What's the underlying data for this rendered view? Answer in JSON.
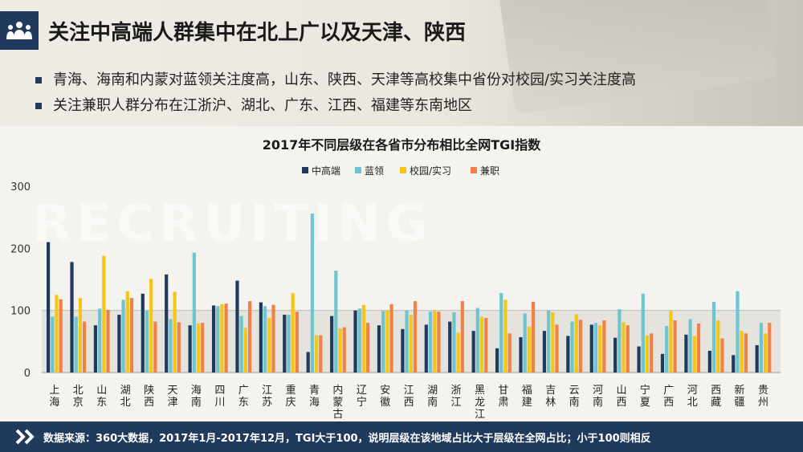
{
  "header": {
    "title": "关注中高端人群集中在北上广以及天津、陕西"
  },
  "bullets": [
    "青海、海南和内蒙对蓝领关注度高，山东、陕西、天津等高校集中省份对校园/实习关注度高",
    "关注兼职人群分布在江浙沪、湖北、广东、江西、福建等东南地区"
  ],
  "watermark": "RECRUITING",
  "footer": {
    "source": "数据来源：360大数据，2017年1月-2017年12月，TGI大于100，说明层级在该地域占比大于层级在全网占比；小于100则相反"
  },
  "colors": {
    "navy": "#1f3a5c",
    "teal": "#6cc5cf",
    "gold": "#f5c518",
    "orange": "#ef8347"
  },
  "icons": {
    "logo": "people-group-icon",
    "footer": "double-chevron-right-icon"
  },
  "chart_data": {
    "type": "bar",
    "title": "2017年不同层级在各省市分布相比全网TGI指数",
    "legend_position": "top-center",
    "ylim": [
      0,
      300
    ],
    "yticks": [
      0,
      100,
      200,
      300
    ],
    "reference_line": 100,
    "categories": [
      "上海",
      "北京",
      "山东",
      "湖北",
      "陕西",
      "天津",
      "海南",
      "四川",
      "广东",
      "江苏",
      "重庆",
      "青海",
      "内蒙古",
      "辽宁",
      "安徽",
      "江西",
      "湖南",
      "浙江",
      "黑龙江",
      "甘肃",
      "福建",
      "吉林",
      "云南",
      "河南",
      "山西",
      "宁夏",
      "广西",
      "河北",
      "西藏",
      "新疆",
      "贵州"
    ],
    "series": [
      {
        "name": "中高端",
        "color": "#1f3a5c",
        "values": [
          210,
          178,
          76,
          93,
          127,
          158,
          76,
          108,
          148,
          113,
          93,
          33,
          91,
          100,
          76,
          70,
          77,
          82,
          67,
          39,
          57,
          67,
          59,
          77,
          56,
          42,
          30,
          61,
          35,
          28,
          44
        ]
      },
      {
        "name": "蓝领",
        "color": "#6cc5cf",
        "values": [
          90,
          90,
          103,
          117,
          100,
          86,
          193,
          107,
          91,
          107,
          93,
          256,
          164,
          103,
          99,
          100,
          98,
          97,
          104,
          128,
          95,
          100,
          82,
          80,
          102,
          127,
          75,
          86,
          114,
          131,
          80
        ]
      },
      {
        "name": "校园/实习",
        "color": "#f5c518",
        "values": [
          125,
          120,
          188,
          131,
          151,
          130,
          79,
          110,
          72,
          88,
          128,
          60,
          71,
          109,
          100,
          93,
          99,
          64,
          90,
          117,
          74,
          97,
          94,
          76,
          81,
          60,
          99,
          59,
          84,
          67,
          63
        ]
      },
      {
        "name": "兼职",
        "color": "#ef8347",
        "values": [
          118,
          82,
          101,
          120,
          82,
          81,
          80,
          111,
          115,
          109,
          98,
          60,
          73,
          80,
          110,
          115,
          98,
          115,
          88,
          63,
          114,
          77,
          85,
          84,
          76,
          63,
          84,
          79,
          55,
          63,
          80
        ]
      }
    ]
  }
}
